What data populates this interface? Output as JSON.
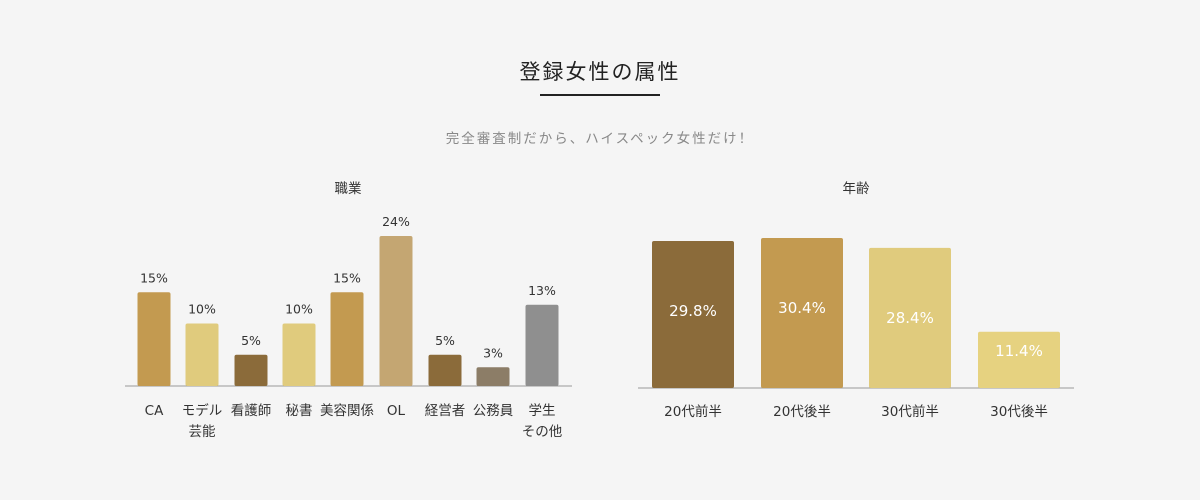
{
  "header": {
    "title": "登録女性の属性",
    "subtitle": "完全審査制だから、ハイスペック女性だけ！"
  },
  "chart_data": [
    {
      "type": "bar",
      "title": "職業",
      "categories": [
        "CA",
        "モデル\n芸能",
        "看護師",
        "秘書",
        "美容関係",
        "OL",
        "経営者",
        "公務員",
        "学生\nその他"
      ],
      "values": [
        15,
        10,
        5,
        10,
        15,
        24,
        5,
        3,
        13
      ],
      "value_labels": [
        "15%",
        "10%",
        "5%",
        "10%",
        "15%",
        "24%",
        "5%",
        "3%",
        "13%"
      ],
      "colors": [
        "#c39a50",
        "#e0cb7d",
        "#8b6b3a",
        "#e0cb7d",
        "#c39a50",
        "#c4a672",
        "#8b6b3a",
        "#8c7d67",
        "#8f8f8f"
      ],
      "ylim": [
        0,
        24
      ],
      "grid": false,
      "legend": "none"
    },
    {
      "type": "bar",
      "title": "年齢",
      "categories": [
        "20代前半",
        "20代後半",
        "30代前半",
        "30代後半"
      ],
      "values": [
        29.8,
        30.4,
        28.4,
        11.4
      ],
      "value_labels": [
        "29.8%",
        "30.4%",
        "28.4%",
        "11.4%"
      ],
      "colors": [
        "#8b6b3a",
        "#c39a50",
        "#e0cb7d",
        "#e6d280"
      ],
      "ylim": [
        0,
        30.4
      ],
      "grid": false,
      "legend": "none"
    }
  ]
}
